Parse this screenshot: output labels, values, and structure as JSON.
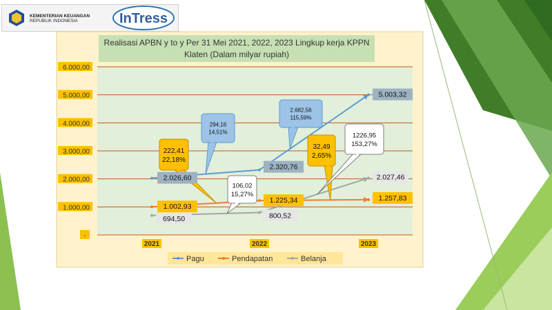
{
  "header": {
    "ministry_line1": "KEMENTERIAN KEUANGAN",
    "ministry_line2": "REPUBLIK INDONESIA",
    "brand": "InTress"
  },
  "colors": {
    "pagu": "#5b9bd5",
    "pendapatan": "#ed7d31",
    "belanja": "#a5a5a5",
    "plot_bg": "#e2efda",
    "chart_bg": "#fff2cc",
    "title_bg": "#c6e0b4",
    "grid": "#c55a11"
  },
  "chart_data": {
    "type": "line",
    "title_lines": [
      "Realisasi APBN y to y Per 31 Mei 2021, 2022, 2023 Lingkup kerja KPPN",
      "Klaten (Dalam milyar rupiah)"
    ],
    "categories": [
      "2021",
      "2022",
      "2023"
    ],
    "ylim": [
      0,
      6000
    ],
    "yticks": [
      0,
      1000,
      2000,
      3000,
      4000,
      5000,
      6000
    ],
    "ytick_labels": [
      "-",
      "1.000,00",
      "2.000,00",
      "3.000,00",
      "4.000,00",
      "5.000,00",
      "6.000,00"
    ],
    "grid": true,
    "legend_position": "bottom",
    "series": [
      {
        "name": "Pagu",
        "key": "pagu",
        "values": [
          2026.6,
          2320.76,
          5003.32
        ],
        "labels": [
          "2.026,60",
          "2.320,76",
          "5.003,32"
        ]
      },
      {
        "name": "Pendapatan",
        "key": "pendapatan",
        "values": [
          1002.93,
          1225.34,
          1257.83
        ],
        "labels": [
          "1.002,93",
          "1.225,34",
          "1.257,83"
        ]
      },
      {
        "name": "Belanja",
        "key": "belanja",
        "values": [
          694.5,
          800.52,
          2027.46
        ],
        "labels": [
          "694,50",
          "800,52",
          "2.027,46"
        ]
      }
    ],
    "callouts": [
      {
        "id": "pagu-2021-2022",
        "lines": [
          "294,16",
          "14,51%"
        ],
        "style": "blue"
      },
      {
        "id": "pagu-2022-2023",
        "lines": [
          "2.682,56",
          "115,59%"
        ],
        "style": "blue"
      },
      {
        "id": "pendapatan-2021-2022",
        "lines": [
          "222,41",
          "22,18%"
        ],
        "style": "orange"
      },
      {
        "id": "pendapatan-2022-2023",
        "lines": [
          "32,49",
          "2,65%"
        ],
        "style": "orange"
      },
      {
        "id": "belanja-2021-2022",
        "lines": [
          "106,02",
          "15,27%"
        ],
        "style": "white"
      },
      {
        "id": "belanja-2022-2023",
        "lines": [
          "1226,95",
          "153,27%"
        ],
        "style": "white"
      }
    ]
  }
}
